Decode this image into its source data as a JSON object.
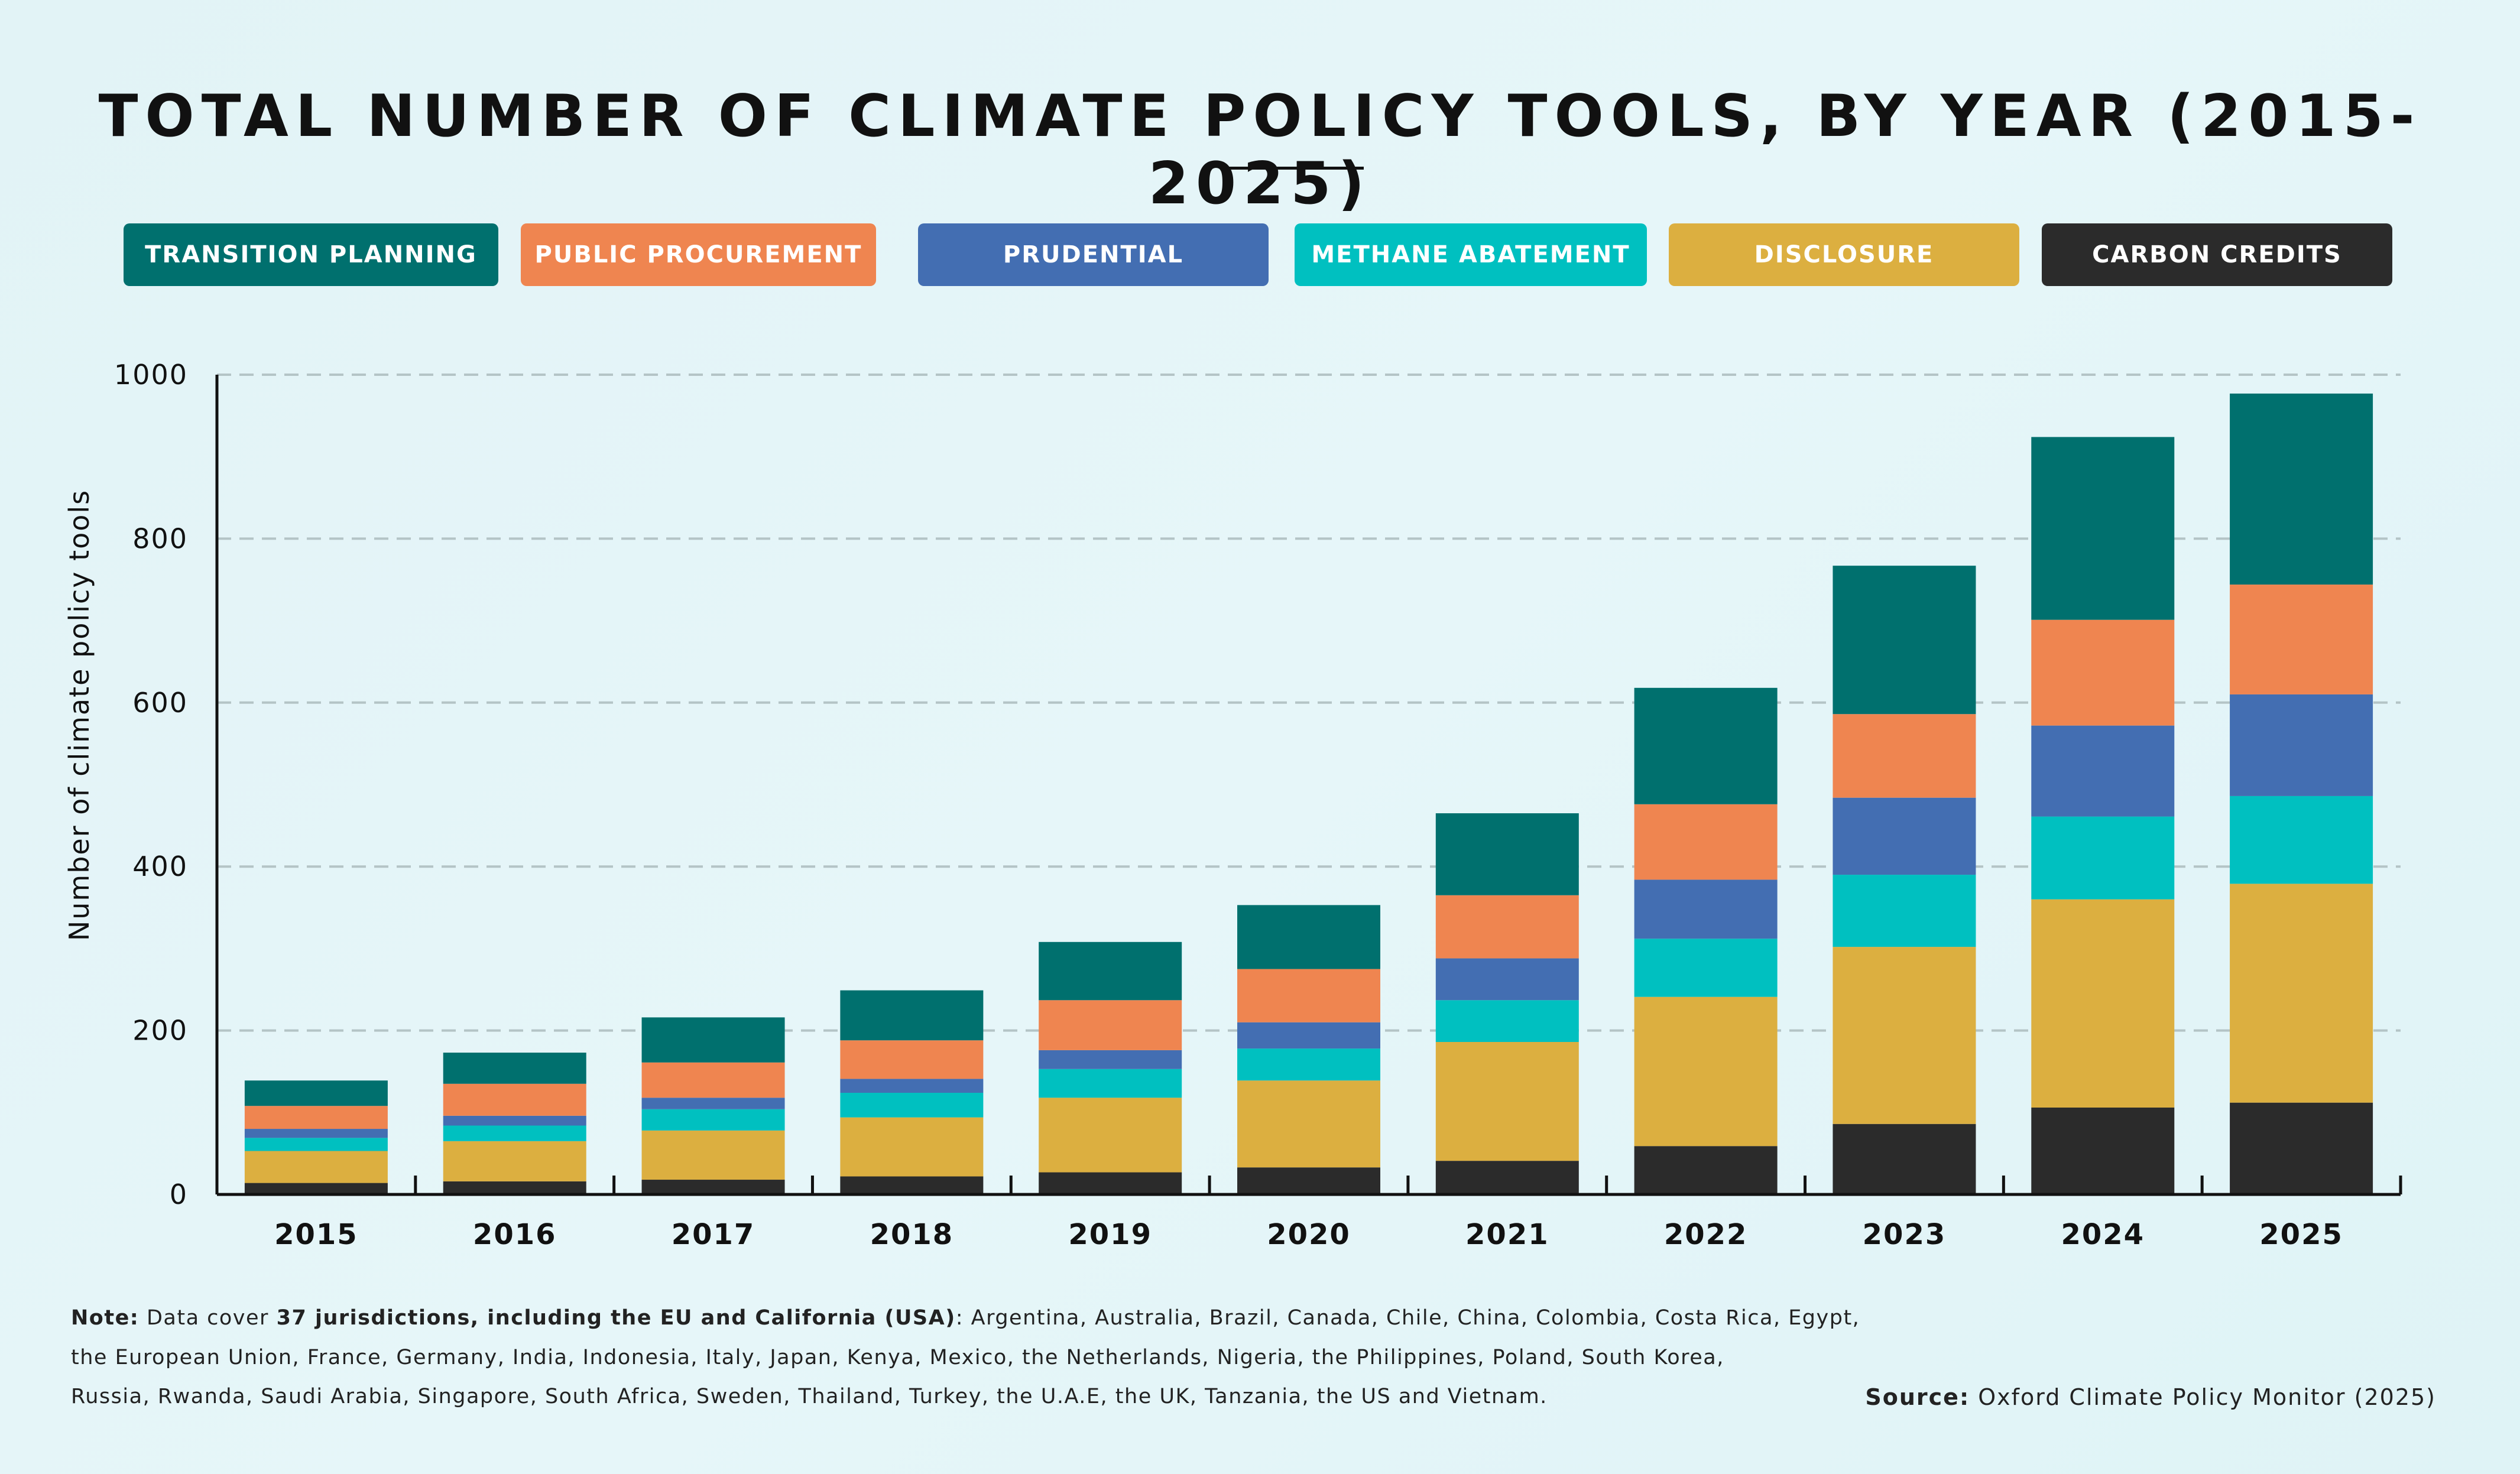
{
  "title": "TOTAL NUMBER OF CLIMATE POLICY TOOLS, BY YEAR (2015-2025)",
  "chart_data": {
    "type": "bar",
    "stacked": true,
    "title": "TOTAL NUMBER OF CLIMATE POLICY TOOLS, BY YEAR (2015-2025)",
    "xlabel": "",
    "ylabel": "Number of climate policy tools",
    "ylim": [
      0,
      1000
    ],
    "yticks": [
      0,
      200,
      400,
      600,
      800,
      1000
    ],
    "grid": true,
    "legend_placement": "top",
    "categories": [
      "2015",
      "2016",
      "2017",
      "2018",
      "2019",
      "2020",
      "2021",
      "2022",
      "2023",
      "2024",
      "2025"
    ],
    "series": [
      {
        "name": "CARBON CREDITS",
        "color": "#2b2b2b",
        "values": [
          14,
          16,
          18,
          22,
          27,
          33,
          41,
          59,
          86,
          106,
          112
        ]
      },
      {
        "name": "DISCLOSURE",
        "color": "#dcaf40",
        "values": [
          39,
          49,
          60,
          72,
          91,
          106,
          145,
          182,
          216,
          254,
          267
        ]
      },
      {
        "name": "METHANE ABATEMENT",
        "color": "#00c0c0",
        "values": [
          16,
          19,
          26,
          30,
          35,
          39,
          51,
          71,
          88,
          101,
          107
        ]
      },
      {
        "name": "PRUDENTIAL",
        "color": "#436eb2",
        "values": [
          11,
          12,
          14,
          17,
          23,
          32,
          51,
          72,
          94,
          111,
          124
        ]
      },
      {
        "name": "PUBLIC PROCUREMENT",
        "color": "#ef8550",
        "values": [
          28,
          39,
          43,
          47,
          61,
          65,
          77,
          92,
          102,
          129,
          134
        ]
      },
      {
        "name": "TRANSITION PLANNING",
        "color": "#00706e",
        "values": [
          31,
          38,
          55,
          61,
          71,
          78,
          100,
          142,
          181,
          223,
          233
        ]
      }
    ]
  },
  "legend": [
    {
      "label": "TRANSITION PLANNING",
      "color": "#00706e"
    },
    {
      "label": "PUBLIC PROCUREMENT",
      "color": "#ef8550"
    },
    {
      "label": "PRUDENTIAL",
      "color": "#436eb2"
    },
    {
      "label": "METHANE ABATEMENT",
      "color": "#00c0c0"
    },
    {
      "label": "DISCLOSURE",
      "color": "#dcaf40"
    },
    {
      "label": "CARBON CREDITS",
      "color": "#2b2b2b"
    }
  ],
  "notes": {
    "label": "Note:",
    "lead": "Data cover",
    "bold": "37 jurisdictions, including the EU and California (USA)",
    "line1": ": Argentina, Australia, Brazil, Canada, Chile, China, Colombia, Costa Rica, Egypt,",
    "line2": "the European Union, France, Germany, India, Indonesia, Italy, Japan, Kenya, Mexico, the Netherlands, Nigeria, the Philippines, Poland, South Korea,",
    "line3": "Russia, Rwanda, Saudi Arabia, Singapore, South Africa, Sweden, Thailand, Turkey, the U.A.E, the UK, Tanzania, the US and Vietnam."
  },
  "source": {
    "label": "Source:",
    "text": "Oxford Climate Policy Monitor (2025)"
  }
}
